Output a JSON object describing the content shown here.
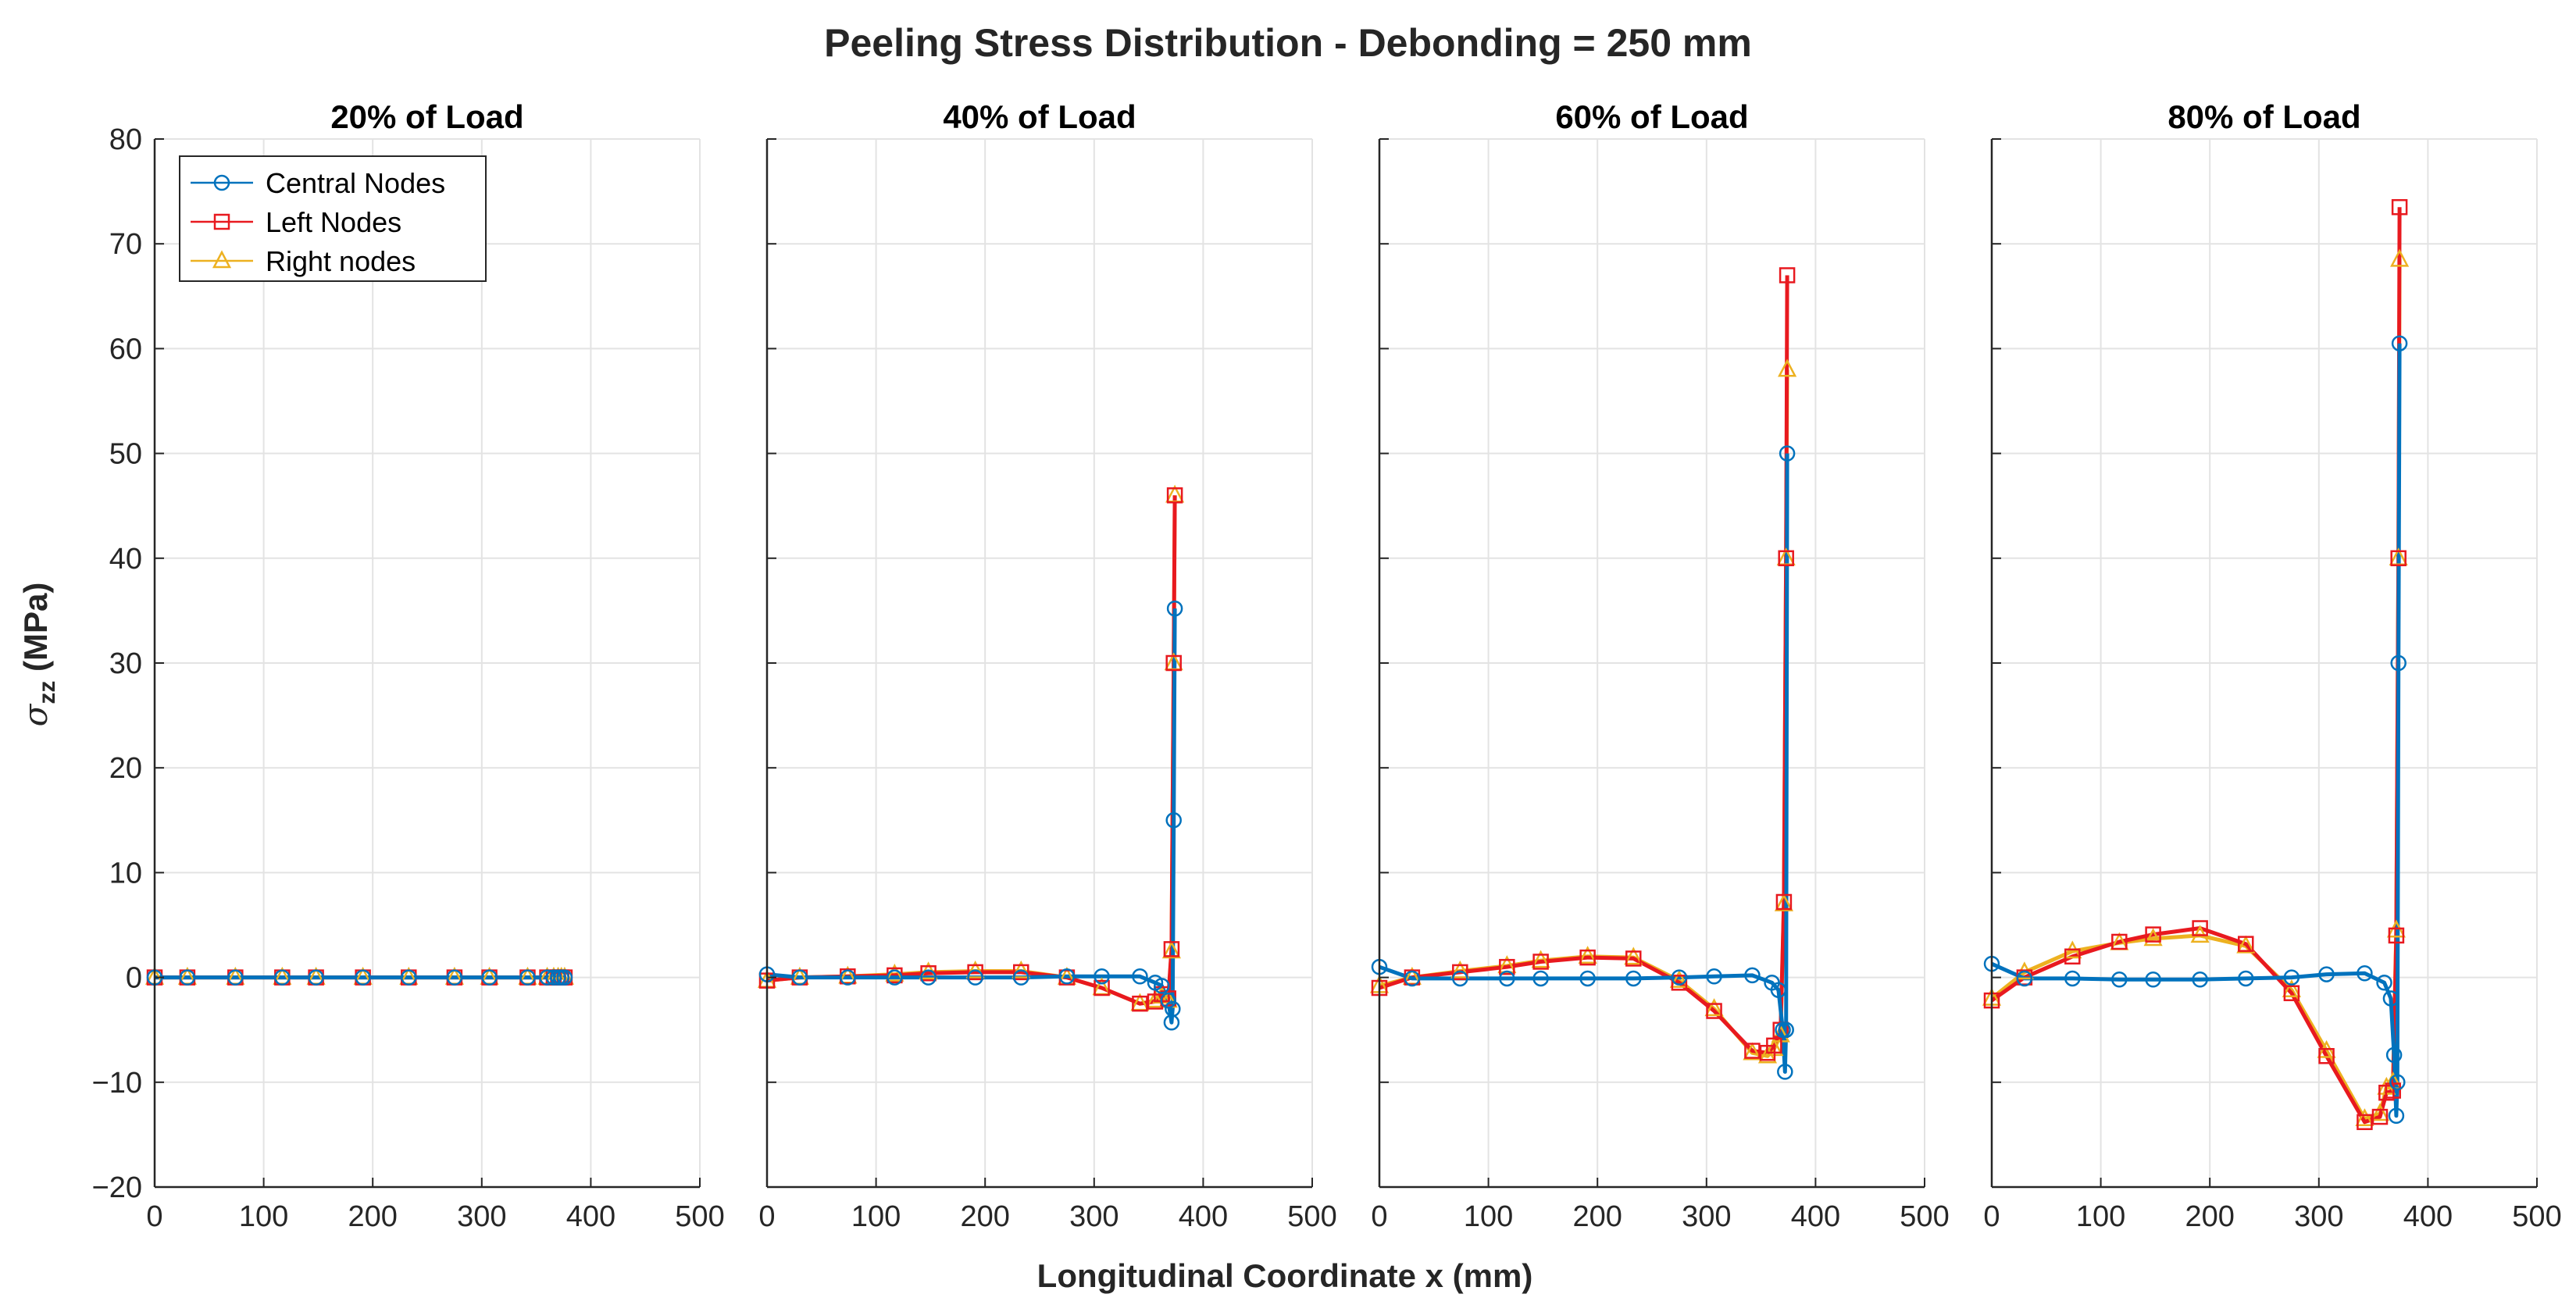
{
  "figure_title": "Peeling Stress Distribution - Debonding = 250 mm",
  "xlabel": "Longitudinal Coordinate x (mm)",
  "ylabel_main": "σ",
  "ylabel_sub": "zz",
  "ylabel_unit": " (MPa)",
  "colors": {
    "central": "#0072BD",
    "left": "#E8191F",
    "right": "#EDB120",
    "axis": "#262626",
    "grid": "#E3E3E3"
  },
  "legend": {
    "location": "top-left of first panel",
    "entries": [
      {
        "label": "Central Nodes",
        "marker": "circle",
        "series": "central"
      },
      {
        "label": "Left Nodes",
        "marker": "square",
        "series": "left"
      },
      {
        "label": "Right nodes",
        "marker": "triangle",
        "series": "right"
      }
    ]
  },
  "chart_data": [
    {
      "type": "line",
      "title": "20% of Load",
      "xlabel": "Longitudinal Coordinate x (mm)",
      "ylabel": "σzz (MPa)",
      "xlim": [
        0,
        500
      ],
      "ylim": [
        -20,
        80
      ],
      "xticks": [
        0,
        100,
        200,
        300,
        400,
        500
      ],
      "yticks": [
        -20,
        -10,
        0,
        10,
        20,
        30,
        40,
        50,
        60,
        70,
        80
      ],
      "show_yticklabels": true,
      "grid": true,
      "series": [
        {
          "name": "Central Nodes",
          "key": "central",
          "x": [
            0,
            30,
            74,
            117,
            148,
            191,
            233,
            275,
            307,
            342,
            360,
            366,
            370,
            373,
            376
          ],
          "y": [
            0,
            0,
            0,
            0,
            0,
            0,
            0,
            0,
            0,
            0,
            0,
            0,
            0,
            0,
            0
          ]
        },
        {
          "name": "Left Nodes",
          "key": "left",
          "x": [
            0,
            30,
            74,
            117,
            148,
            191,
            233,
            275,
            307,
            342,
            360,
            366,
            370,
            373,
            376
          ],
          "y": [
            0,
            0,
            0,
            0,
            0,
            0,
            0,
            0,
            0,
            0,
            0,
            0,
            0,
            0,
            0
          ]
        },
        {
          "name": "Right nodes",
          "key": "right",
          "x": [
            0,
            30,
            74,
            117,
            148,
            191,
            233,
            275,
            307,
            342,
            360,
            366,
            370,
            373,
            376
          ],
          "y": [
            0,
            0,
            0,
            0,
            0,
            0,
            0,
            0,
            0,
            0,
            0,
            0,
            0,
            0,
            0
          ]
        }
      ]
    },
    {
      "type": "line",
      "title": "40% of Load",
      "xlabel": "Longitudinal Coordinate x (mm)",
      "ylabel": "σzz (MPa)",
      "xlim": [
        0,
        500
      ],
      "ylim": [
        -20,
        80
      ],
      "xticks": [
        0,
        100,
        200,
        300,
        400,
        500
      ],
      "yticks": [
        -20,
        -10,
        0,
        10,
        20,
        30,
        40,
        50,
        60,
        70,
        80
      ],
      "show_yticklabels": false,
      "grid": true,
      "series": [
        {
          "name": "Central Nodes",
          "key": "central",
          "x": [
            0,
            30,
            74,
            117,
            148,
            191,
            233,
            275,
            307,
            342,
            356,
            362,
            368,
            371,
            372,
            373,
            374
          ],
          "y": [
            0.3,
            0,
            0,
            0,
            0,
            0,
            0,
            0.1,
            0.1,
            0.1,
            -0.5,
            -0.8,
            -2.2,
            -4.3,
            -3,
            15,
            35.2
          ]
        },
        {
          "name": "Left Nodes",
          "key": "left",
          "x": [
            0,
            30,
            74,
            117,
            148,
            191,
            233,
            275,
            307,
            342,
            356,
            362,
            368,
            371,
            373,
            374
          ],
          "y": [
            -0.3,
            0,
            0.1,
            0.2,
            0.4,
            0.5,
            0.5,
            0,
            -1,
            -2.5,
            -2.3,
            -1.6,
            -2,
            2.7,
            30,
            46
          ]
        },
        {
          "name": "Right nodes",
          "key": "right",
          "x": [
            0,
            30,
            74,
            117,
            148,
            191,
            233,
            275,
            307,
            342,
            356,
            362,
            368,
            371,
            373,
            374
          ],
          "y": [
            -0.3,
            0,
            0.1,
            0.3,
            0.5,
            0.6,
            0.6,
            0,
            -1,
            -2.5,
            -2.2,
            -1.8,
            -2.2,
            2.5,
            30,
            46
          ]
        }
      ]
    },
    {
      "type": "line",
      "title": "60% of Load",
      "xlabel": "Longitudinal Coordinate x (mm)",
      "ylabel": "σzz (MPa)",
      "xlim": [
        0,
        500
      ],
      "ylim": [
        -20,
        80
      ],
      "xticks": [
        0,
        100,
        200,
        300,
        400,
        500
      ],
      "yticks": [
        -20,
        -10,
        0,
        10,
        20,
        30,
        40,
        50,
        60,
        70,
        80
      ],
      "show_yticklabels": false,
      "grid": true,
      "series": [
        {
          "name": "Central Nodes",
          "key": "central",
          "x": [
            0,
            30,
            74,
            117,
            148,
            191,
            233,
            275,
            307,
            342,
            360,
            366,
            370,
            372,
            373,
            374
          ],
          "y": [
            1,
            -0.1,
            -0.1,
            -0.1,
            -0.1,
            -0.1,
            -0.1,
            0,
            0.1,
            0.2,
            -0.5,
            -1.2,
            -5,
            -9,
            -5,
            50
          ]
        },
        {
          "name": "Left Nodes",
          "key": "left",
          "x": [
            0,
            30,
            74,
            117,
            148,
            191,
            233,
            275,
            307,
            342,
            356,
            362,
            368,
            371,
            373,
            374
          ],
          "y": [
            -1,
            0,
            0.5,
            1,
            1.5,
            1.9,
            1.8,
            -0.5,
            -3.2,
            -7,
            -7.2,
            -6.5,
            -5,
            7.2,
            40,
            67
          ]
        },
        {
          "name": "Right nodes",
          "key": "right",
          "x": [
            0,
            30,
            74,
            117,
            148,
            191,
            233,
            275,
            307,
            342,
            356,
            362,
            368,
            371,
            373,
            374
          ],
          "y": [
            -0.8,
            0,
            0.6,
            1.1,
            1.6,
            2,
            1.9,
            -0.3,
            -3,
            -7.2,
            -7.5,
            -6.8,
            -5.5,
            7,
            40,
            58
          ]
        }
      ]
    },
    {
      "type": "line",
      "title": "80% of Load",
      "xlabel": "Longitudinal Coordinate x (mm)",
      "ylabel": "σzz (MPa)",
      "xlim": [
        0,
        500
      ],
      "ylim": [
        -20,
        80
      ],
      "xticks": [
        0,
        100,
        200,
        300,
        400,
        500
      ],
      "yticks": [
        -20,
        -10,
        0,
        10,
        20,
        30,
        40,
        50,
        60,
        70,
        80
      ],
      "show_yticklabels": false,
      "grid": true,
      "series": [
        {
          "name": "Central Nodes",
          "key": "central",
          "x": [
            0,
            30,
            74,
            117,
            148,
            191,
            233,
            275,
            307,
            342,
            360,
            366,
            369,
            371,
            372,
            373,
            374
          ],
          "y": [
            1.3,
            -0.1,
            -0.1,
            -0.2,
            -0.2,
            -0.2,
            -0.1,
            0,
            0.3,
            0.4,
            -0.5,
            -2,
            -7.4,
            -13.2,
            -10,
            30,
            60.5
          ]
        },
        {
          "name": "Left Nodes",
          "key": "left",
          "x": [
            0,
            30,
            74,
            117,
            148,
            191,
            233,
            275,
            307,
            342,
            356,
            362,
            368,
            371,
            373,
            374
          ],
          "y": [
            -2.2,
            0,
            2,
            3.4,
            4.1,
            4.7,
            3.2,
            -1.5,
            -7.5,
            -13.8,
            -13.3,
            -11,
            -10.8,
            4,
            40,
            73.5
          ]
        },
        {
          "name": "Right nodes",
          "key": "right",
          "x": [
            0,
            30,
            74,
            117,
            148,
            191,
            233,
            275,
            307,
            342,
            356,
            362,
            368,
            371,
            373,
            374
          ],
          "y": [
            -2,
            0.5,
            2.5,
            3.3,
            3.7,
            4,
            3,
            -1.2,
            -7,
            -13.5,
            -13,
            -10.5,
            -10,
            4.5,
            40,
            68.5
          ]
        }
      ]
    }
  ]
}
